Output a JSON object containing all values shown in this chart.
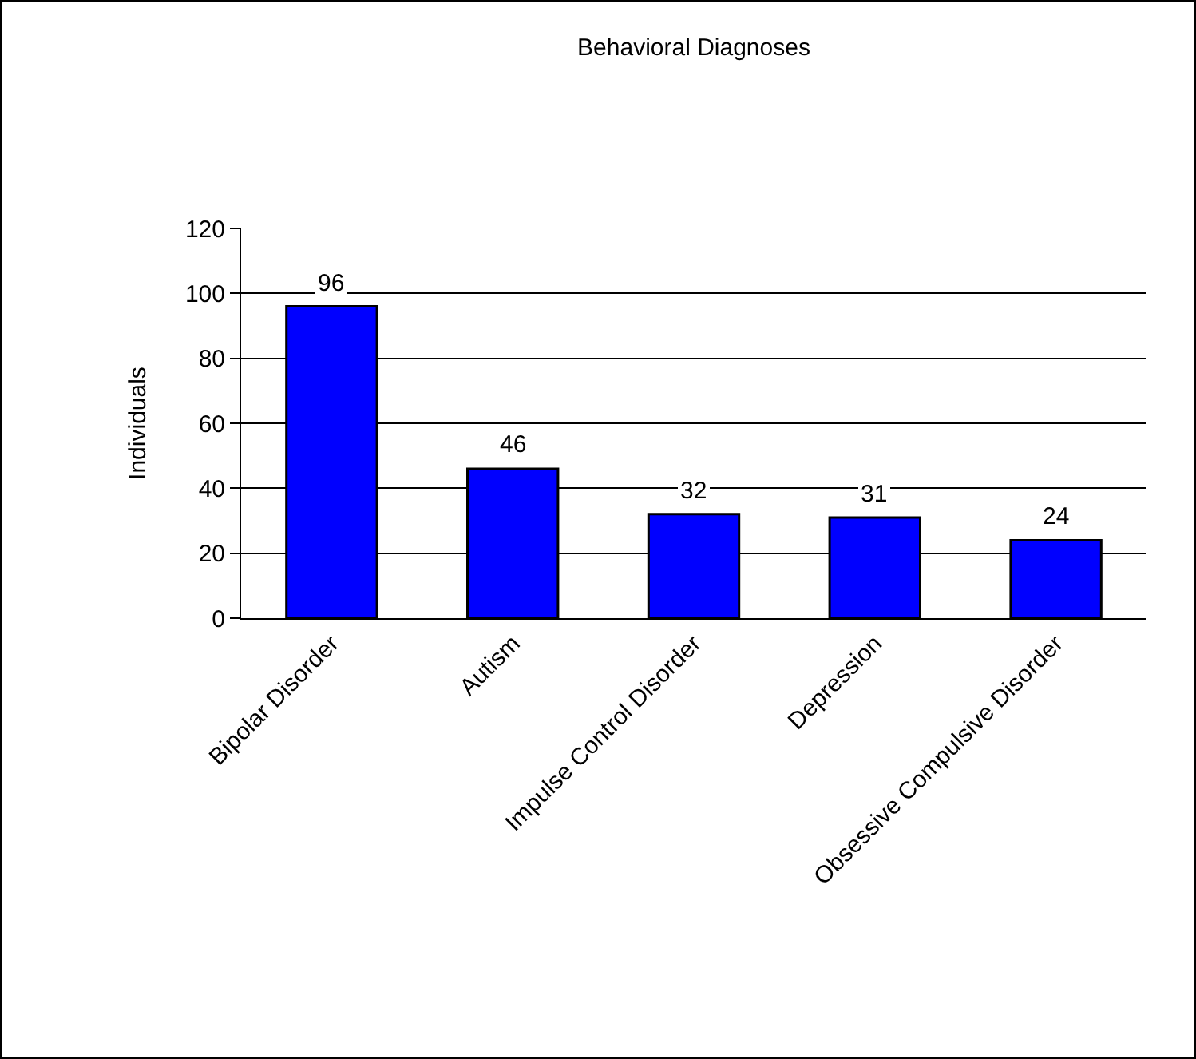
{
  "chart_data": {
    "type": "bar",
    "title": "Behavioral Diagnoses",
    "ylabel": "Individuals",
    "categories": [
      "Bipolar Disorder",
      "Autism",
      "Impulse Control Disorder",
      "Depression",
      "Obsessive Compulsive Disorder"
    ],
    "values": [
      96,
      46,
      32,
      31,
      24
    ],
    "color": "#0000ff",
    "ylim": [
      0,
      120
    ],
    "yticks": [
      0,
      20,
      40,
      60,
      80,
      100,
      120
    ],
    "grid": "y",
    "data_labels": true,
    "legend": false
  }
}
